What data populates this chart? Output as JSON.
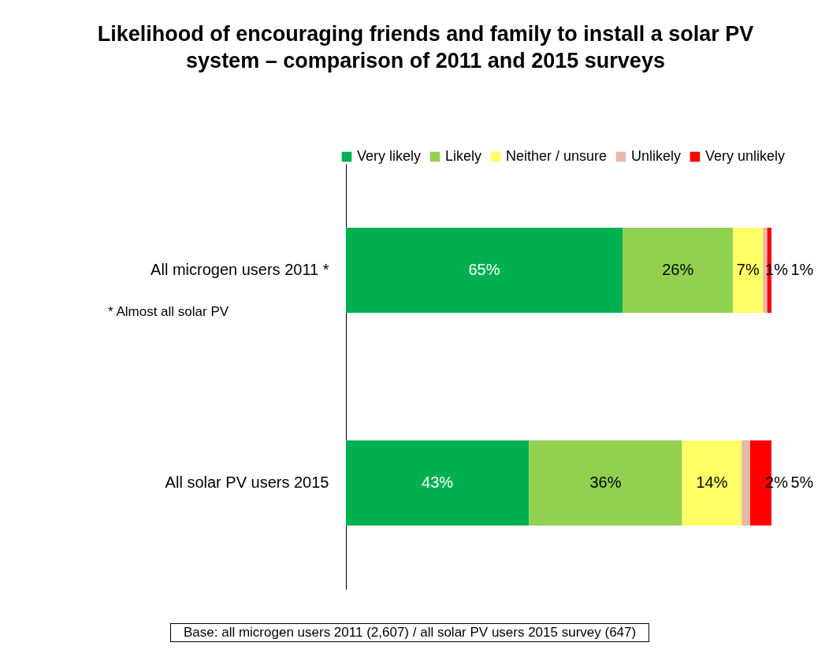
{
  "chart_data": {
    "type": "bar",
    "orientation": "horizontal",
    "stacked": true,
    "title": "Likelihood of encouraging friends and family to install a solar PV system – comparison of 2011 and 2015 surveys",
    "categories": [
      "All microgen users 2011 *",
      "All solar PV users 2015"
    ],
    "series": [
      {
        "name": "Very likely",
        "color": "#00b050",
        "values": [
          65,
          43
        ],
        "value_labels": [
          "65%",
          "43%"
        ]
      },
      {
        "name": "Likely",
        "color": "#92d050",
        "values": [
          26,
          36
        ],
        "value_labels": [
          "26%",
          "36%"
        ]
      },
      {
        "name": "Neither / unsure",
        "color": "#ffff66",
        "values": [
          7,
          14
        ],
        "value_labels": [
          "7%",
          "14%"
        ]
      },
      {
        "name": "Unlikely",
        "color": "#e6b9a8",
        "values": [
          1,
          2
        ],
        "value_labels": [
          "1%",
          "2%"
        ]
      },
      {
        "name": "Very unlikely",
        "color": "#ff0000",
        "values": [
          1,
          5
        ],
        "value_labels": [
          "1%",
          "5%"
        ]
      }
    ],
    "legend": "top right",
    "annotations": [
      "*  Almost all solar PV",
      "Base: all microgen users 2011 (2,607) / all solar PV users 2015 survey (647)"
    ]
  }
}
